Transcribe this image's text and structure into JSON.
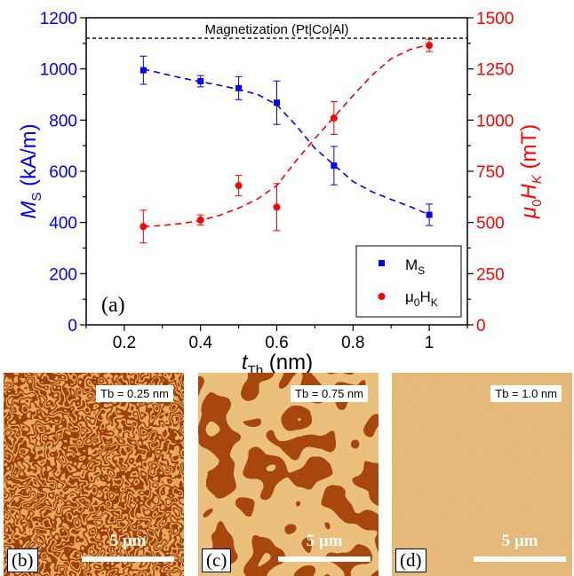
{
  "chart_data": {
    "type": "scatter",
    "annotation": "Magnetization (Pt|Co|Al)",
    "annotation_value": 1120,
    "panel_label": "(a)",
    "xlim": [
      0.1,
      1.1
    ],
    "xticks": [
      0.2,
      0.4,
      0.6,
      0.8,
      1
    ],
    "xtick_labels": [
      "0.2",
      "0.4",
      "0.6",
      "0.8",
      "1"
    ],
    "xlabel_pre": "t",
    "xlabel_sub": "Tb",
    "xlabel_post": " (nm)",
    "left_axis": {
      "label_pre": "M",
      "label_sub": "S",
      "label_post": " (kA/m)",
      "ylim": [
        0,
        1200
      ],
      "ticks": [
        "0",
        "200",
        "400",
        "600",
        "800",
        "1000",
        "1200"
      ],
      "color": "#0000ff"
    },
    "right_axis": {
      "label_pre": "μ",
      "label_sub": "0",
      "label_mid": "H",
      "label_sub2": "K",
      "label_post": " (mT)",
      "ylim": [
        0,
        1500
      ],
      "ticks": [
        "0",
        "250",
        "500",
        "750",
        "1000",
        "1250",
        "1500"
      ],
      "color": "#ff0000"
    },
    "series": [
      {
        "name_main": "M",
        "name_sub": "S",
        "axis": "left",
        "marker": "square",
        "color": "#0000ff",
        "x": [
          0.25,
          0.4,
          0.5,
          0.6,
          0.75,
          1.0
        ],
        "y": [
          995,
          952,
          925,
          868,
          622,
          430
        ],
        "err": [
          55,
          22,
          45,
          85,
          75,
          42
        ],
        "fit_x": [
          0.25,
          0.3,
          0.35,
          0.4,
          0.45,
          0.5,
          0.55,
          0.6,
          0.65,
          0.7,
          0.75,
          0.8,
          0.85,
          0.9,
          0.95,
          1.0
        ],
        "fit_y": [
          1000,
          982,
          965,
          950,
          936,
          920,
          900,
          860,
          780,
          690,
          625,
          560,
          520,
          490,
          462,
          430
        ]
      },
      {
        "name_main": "μ",
        "name_sub": "0",
        "name_mid": "H",
        "name_sub2": "K",
        "axis": "right",
        "marker": "circle",
        "color": "#ff0000",
        "x": [
          0.25,
          0.4,
          0.5,
          0.6,
          0.75,
          1.0
        ],
        "y": [
          480,
          512,
          680,
          575,
          1010,
          1365
        ],
        "err": [
          80,
          25,
          50,
          115,
          80,
          30
        ],
        "fit_x": [
          0.25,
          0.3,
          0.35,
          0.4,
          0.45,
          0.5,
          0.55,
          0.6,
          0.65,
          0.7,
          0.75,
          0.8,
          0.85,
          0.9,
          0.95,
          1.0
        ],
        "fit_y": [
          480,
          485,
          495,
          510,
          535,
          570,
          615,
          680,
          800,
          910,
          1015,
          1120,
          1220,
          1300,
          1345,
          1370
        ]
      }
    ],
    "legend_position": "bottom-right",
    "grid": false
  },
  "images": [
    {
      "tag": "Tb = 0.25 nm",
      "letter": "(b)",
      "scale": "5 μm",
      "pattern": "maze"
    },
    {
      "tag": "Tb = 0.75 nm",
      "letter": "(c)",
      "scale": "5 μm",
      "pattern": "stripe"
    },
    {
      "tag": "Tb = 1.0 nm",
      "letter": "(d)",
      "scale": "5 μm",
      "pattern": "uniform"
    }
  ]
}
